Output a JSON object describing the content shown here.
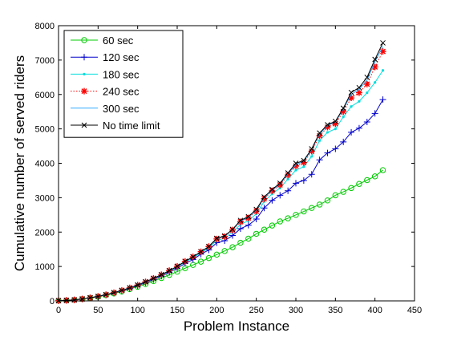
{
  "chart_data": {
    "type": "line",
    "title": "",
    "xlabel": "Problem Instance",
    "ylabel": "Cumulative number of served riders",
    "xlim": [
      0,
      450
    ],
    "ylim": [
      0,
      8000
    ],
    "xticks": [
      0,
      50,
      100,
      150,
      200,
      250,
      300,
      350,
      400,
      450
    ],
    "yticks": [
      0,
      1000,
      2000,
      3000,
      4000,
      5000,
      6000,
      7000,
      8000
    ],
    "grid": false,
    "legend_position": "top-left",
    "x": [
      0,
      10,
      20,
      30,
      40,
      50,
      60,
      70,
      80,
      90,
      100,
      110,
      120,
      130,
      140,
      150,
      160,
      170,
      180,
      190,
      200,
      210,
      220,
      230,
      240,
      250,
      260,
      270,
      280,
      290,
      300,
      310,
      320,
      330,
      340,
      350,
      360,
      370,
      380,
      390,
      400,
      410
    ],
    "series": [
      {
        "name": "60 sec",
        "color": "#00cc00",
        "line_style": "solid",
        "marker": "circle",
        "values": [
          5,
          15,
          30,
          55,
          85,
          120,
          165,
          215,
          275,
          340,
          410,
          490,
          575,
          665,
          755,
          850,
          950,
          1045,
          1140,
          1245,
          1345,
          1450,
          1560,
          1690,
          1810,
          1950,
          2070,
          2190,
          2310,
          2400,
          2500,
          2600,
          2700,
          2800,
          2920,
          3070,
          3170,
          3280,
          3400,
          3510,
          3620,
          3800
        ]
      },
      {
        "name": "120 sec",
        "color": "#0000cc",
        "line_style": "solid",
        "marker": "plus",
        "values": [
          5,
          15,
          30,
          55,
          90,
          125,
          175,
          230,
          290,
          360,
          440,
          530,
          620,
          720,
          830,
          950,
          1090,
          1200,
          1360,
          1480,
          1690,
          1750,
          1900,
          2100,
          2200,
          2380,
          2700,
          2920,
          3070,
          3200,
          3420,
          3500,
          3680,
          4100,
          4300,
          4420,
          4620,
          4900,
          5020,
          5200,
          5450,
          5850
        ]
      },
      {
        "name": "180 sec",
        "color": "#00dddd",
        "line_style": "solid",
        "marker": "point",
        "values": [
          5,
          15,
          30,
          55,
          90,
          130,
          180,
          235,
          300,
          375,
          455,
          550,
          645,
          750,
          865,
          990,
          1130,
          1250,
          1400,
          1540,
          1760,
          1820,
          2000,
          2220,
          2330,
          2530,
          2890,
          3110,
          3280,
          3540,
          3800,
          3900,
          4200,
          4660,
          4900,
          5000,
          5350,
          5650,
          5800,
          6050,
          6350,
          6700
        ]
      },
      {
        "name": "240 sec",
        "color": "#ff0000",
        "line_style": "dotted",
        "marker": "star",
        "values": [
          5,
          15,
          30,
          55,
          90,
          130,
          180,
          240,
          305,
          380,
          460,
          555,
          655,
          760,
          880,
          1005,
          1150,
          1280,
          1430,
          1580,
          1800,
          1870,
          2060,
          2300,
          2410,
          2610,
          2970,
          3200,
          3370,
          3660,
          3920,
          4020,
          4350,
          4800,
          5050,
          5150,
          5500,
          5900,
          6050,
          6300,
          6800,
          7250
        ]
      },
      {
        "name": "300 sec",
        "color": "#33aaff",
        "line_style": "solid",
        "marker": "none",
        "values": [
          5,
          15,
          30,
          55,
          90,
          130,
          180,
          240,
          305,
          380,
          460,
          555,
          655,
          760,
          880,
          1005,
          1150,
          1280,
          1430,
          1580,
          1810,
          1880,
          2070,
          2320,
          2430,
          2640,
          3000,
          3220,
          3400,
          3700,
          3960,
          4060,
          4400,
          4850,
          5100,
          5200,
          5580,
          6000,
          6150,
          6420,
          6950,
          7400
        ]
      },
      {
        "name": "No time limit",
        "color": "#000000",
        "line_style": "solid",
        "marker": "x",
        "values": [
          5,
          15,
          30,
          55,
          90,
          130,
          180,
          240,
          305,
          380,
          460,
          555,
          655,
          760,
          880,
          1005,
          1150,
          1280,
          1430,
          1580,
          1820,
          1890,
          2080,
          2340,
          2450,
          2660,
          3020,
          3240,
          3420,
          3720,
          4000,
          4080,
          4420,
          4880,
          5120,
          5220,
          5600,
          6060,
          6200,
          6500,
          7020,
          7500
        ]
      }
    ]
  }
}
